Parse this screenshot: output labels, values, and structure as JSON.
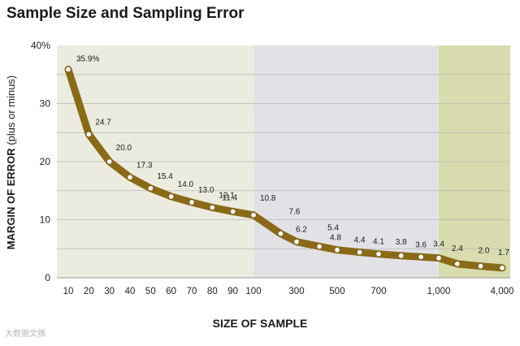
{
  "chart_data": {
    "type": "line",
    "title": "Sample Size and Sampling Error",
    "xlabel": "SIZE OF SAMPLE",
    "ylabel_main": "MARGIN OF ERROR",
    "ylabel_sub": "(plus or minus)",
    "y_ticks": [
      "0",
      "10",
      "20",
      "30",
      "40%"
    ],
    "ylim": [
      0,
      40
    ],
    "x_ticks": [
      "10",
      "20",
      "30",
      "40",
      "50",
      "60",
      "70",
      "80",
      "90",
      "100",
      "300",
      "500",
      "700",
      "1,000",
      "4,000"
    ],
    "series": [
      {
        "x": [
          10,
          20,
          30,
          40,
          50,
          60,
          70,
          80,
          90,
          100,
          200,
          300,
          400,
          500,
          600,
          700,
          800,
          900,
          1000,
          1500,
          2500,
          4000
        ],
        "values": [
          35.9,
          24.7,
          20.0,
          17.3,
          15.4,
          14.0,
          13.0,
          12.1,
          11.4,
          10.8,
          7.6,
          6.2,
          5.4,
          4.8,
          4.4,
          4.1,
          3.8,
          3.6,
          3.4,
          2.4,
          2.0,
          1.7
        ],
        "labels": [
          "35.9%",
          "24.7",
          "20.0",
          "17.3",
          "15.4",
          "14.0",
          "13.0",
          "12.1",
          "11.4",
          "10.8",
          "7.6",
          "6.2",
          "5.4",
          "4.8",
          "4.4",
          "4.1",
          "3.8",
          "3.6",
          "3.4",
          "2.4",
          "2.0",
          "1.7"
        ]
      }
    ],
    "grid": true,
    "colors": {
      "band_1": "#ecebdf",
      "band_2": "#e2e2e6",
      "band_3": "#d8dcae",
      "line": "#8a6a17",
      "marker": "#ffffff"
    }
  },
  "watermark": "大数据文摘"
}
